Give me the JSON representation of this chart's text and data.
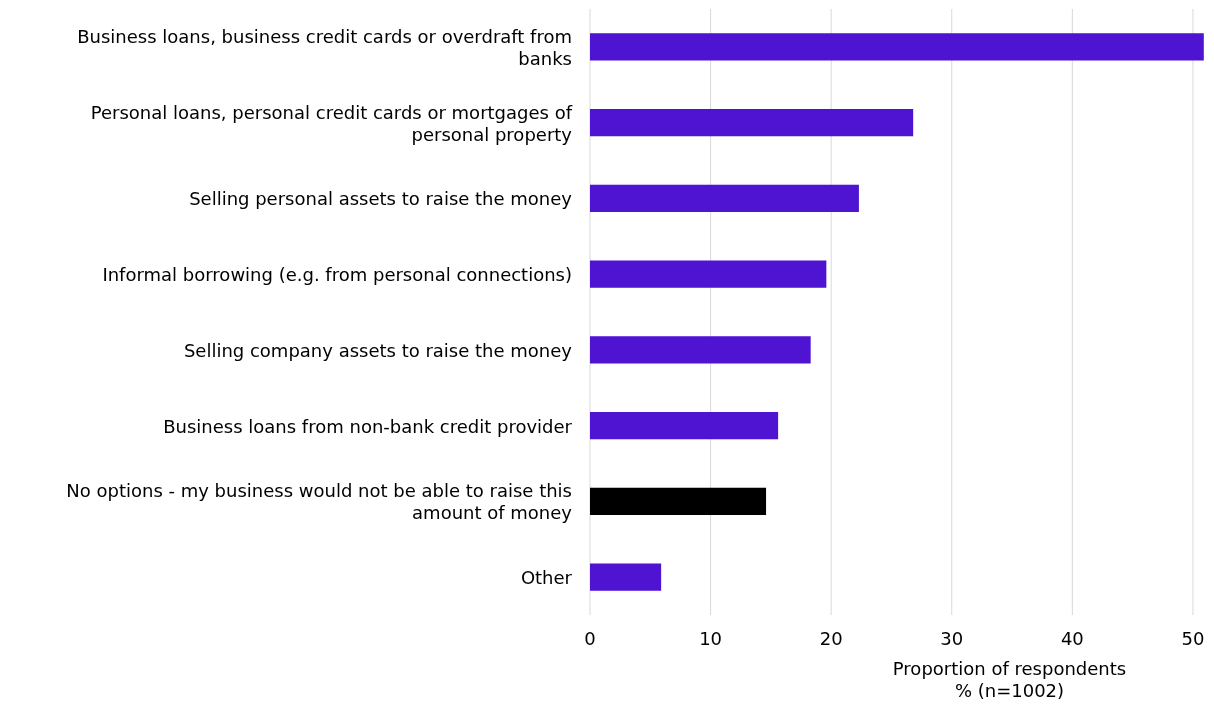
{
  "chart_data": {
    "type": "bar",
    "orientation": "horizontal",
    "xlabel": "Proportion of respondents\n% (n=1002)",
    "categories": [
      "Business loans, business credit cards or overdraft from banks",
      "Personal loans, personal credit cards or mortgages of personal property",
      "Selling personal assets to raise the money",
      "Informal borrowing (e.g. from personal connections)",
      "Selling company assets to raise the money",
      "Business loans from non-bank credit provider",
      "No options - my business would not be able to raise this amount of money",
      "Other"
    ],
    "values": [
      50.9,
      26.8,
      22.3,
      19.6,
      18.3,
      15.6,
      14.6,
      5.9
    ],
    "colors": [
      "#4f14d1",
      "#4f14d1",
      "#4f14d1",
      "#4f14d1",
      "#4f14d1",
      "#4f14d1",
      "#000000",
      "#4f14d1"
    ],
    "xlim": [
      0,
      51
    ],
    "xticks": [
      0,
      10,
      20,
      30,
      40,
      50
    ],
    "grid": "x"
  }
}
